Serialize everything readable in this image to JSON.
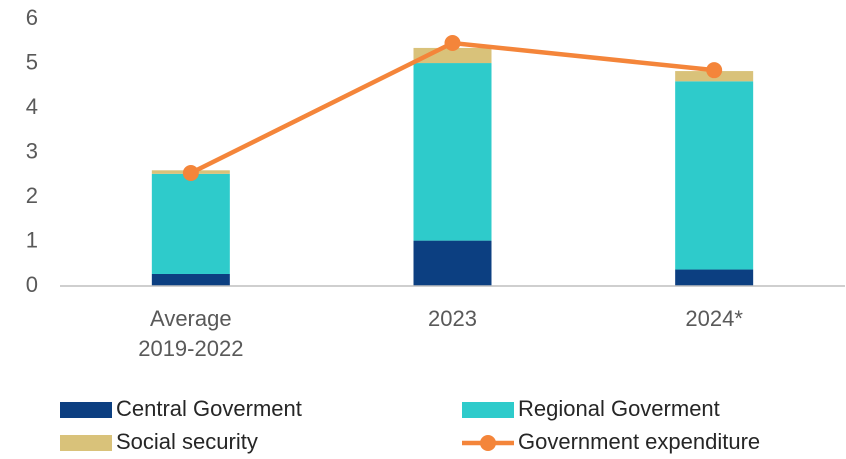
{
  "chart_data": {
    "type": "bar",
    "stacked": true,
    "categories": [
      [
        "Average",
        "2019-2022"
      ],
      [
        "2023"
      ],
      [
        "2024*"
      ]
    ],
    "series": [
      {
        "name": "Central Goverment",
        "color": "#0c3f81",
        "values": [
          0.27,
          1.02,
          0.37
        ]
      },
      {
        "name": "Regional Goverment",
        "color": "#2ecbcb",
        "values": [
          2.25,
          3.99,
          4.23
        ]
      },
      {
        "name": "Social security",
        "color": "#d9c27a",
        "values": [
          0.08,
          0.34,
          0.23
        ]
      },
      {
        "name": "Government expenditure",
        "color": "#f4853a",
        "type": "line",
        "values": [
          2.54,
          5.46,
          4.85
        ]
      }
    ],
    "ylim": [
      0,
      6
    ],
    "yticks": [
      0,
      1,
      2,
      3,
      4,
      5,
      6
    ],
    "grid": false,
    "legend": "bottom"
  }
}
